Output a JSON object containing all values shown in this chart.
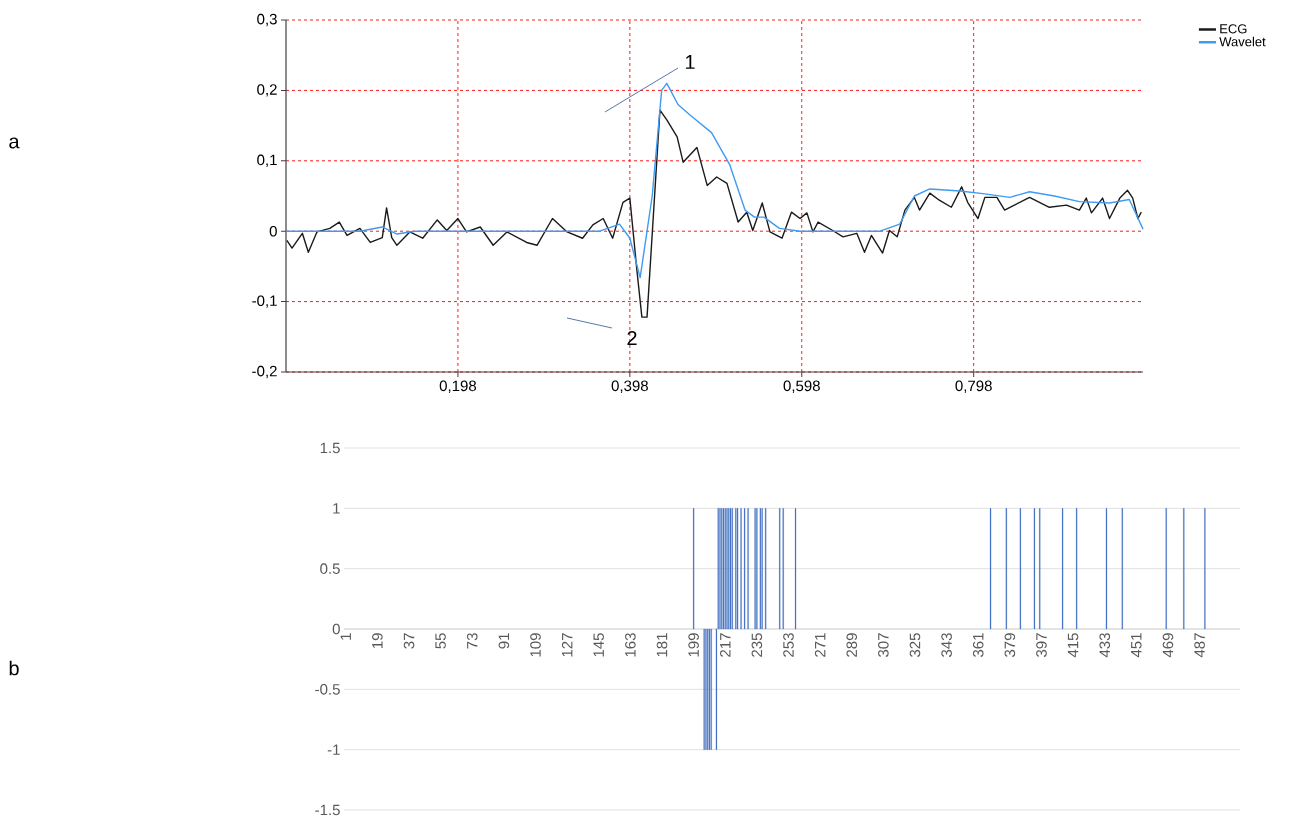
{
  "chart_data": [
    {
      "type": "line",
      "xlim": [
        -0.002,
        0.995
      ],
      "ylim": [
        -0.2,
        0.3
      ],
      "xticks": [
        {
          "value": 0.198,
          "label": "0,198"
        },
        {
          "value": 0.398,
          "label": "0,398"
        },
        {
          "value": 0.598,
          "label": "0,598"
        },
        {
          "value": 0.798,
          "label": "0,798"
        }
      ],
      "yticks": [
        {
          "value": -0.2,
          "label": "-0,2"
        },
        {
          "value": -0.1,
          "label": "-0,1"
        },
        0,
        {
          "value": 0.1,
          "label": "0,1"
        },
        {
          "value": 0.2,
          "label": "0,2"
        },
        {
          "value": 0.3,
          "label": "0,3"
        }
      ],
      "grid": true,
      "legend": "top right",
      "series": [
        {
          "name": "ECG",
          "color": "#1a1a1a",
          "x": [
            -0.001,
            0.005,
            0.017,
            0.024,
            0.034,
            0.049,
            0.06,
            0.069,
            0.084,
            0.096,
            0.11,
            0.115,
            0.121,
            0.127,
            0.142,
            0.157,
            0.174,
            0.185,
            0.198,
            0.208,
            0.224,
            0.239,
            0.255,
            0.278,
            0.29,
            0.308,
            0.325,
            0.343,
            0.355,
            0.367,
            0.378,
            0.39,
            0.398,
            0.406,
            0.412,
            0.418,
            0.433,
            0.441,
            0.453,
            0.46,
            0.476,
            0.488,
            0.499,
            0.511,
            0.524,
            0.534,
            0.541,
            0.552,
            0.561,
            0.575,
            0.586,
            0.596,
            0.604,
            0.611,
            0.617,
            0.634,
            0.646,
            0.662,
            0.671,
            0.679,
            0.692,
            0.7,
            0.709,
            0.718,
            0.729,
            0.735,
            0.747,
            0.758,
            0.772,
            0.784,
            0.791,
            0.803,
            0.811,
            0.825,
            0.834,
            0.863,
            0.886,
            0.906,
            0.921,
            0.929,
            0.935,
            0.948,
            0.956,
            0.968,
            0.977,
            0.983,
            0.989,
            0.993
          ],
          "values": [
            -0.013,
            -0.024,
            -0.003,
            -0.03,
            -0.001,
            0.004,
            0.013,
            -0.006,
            0.004,
            -0.016,
            -0.009,
            0.033,
            -0.009,
            -0.02,
            -0.001,
            -0.01,
            0.016,
            0.001,
            0.018,
            -0.001,
            0.006,
            -0.02,
            -0.001,
            -0.016,
            -0.02,
            0.018,
            -0.001,
            -0.01,
            0.009,
            0.018,
            -0.01,
            0.041,
            0.047,
            -0.053,
            -0.122,
            -0.122,
            0.172,
            0.158,
            0.134,
            0.098,
            0.119,
            0.065,
            0.077,
            0.068,
            0.013,
            0.027,
            0.001,
            0.04,
            -0.001,
            -0.01,
            0.027,
            0.018,
            0.026,
            -0.001,
            0.013,
            0.001,
            -0.008,
            -0.003,
            -0.03,
            -0.006,
            -0.031,
            0.001,
            -0.008,
            0.03,
            0.048,
            0.03,
            0.054,
            0.044,
            0.034,
            0.063,
            0.041,
            0.018,
            0.048,
            0.048,
            0.03,
            0.048,
            0.034,
            0.037,
            0.03,
            0.047,
            0.026,
            0.047,
            0.018,
            0.047,
            0.058,
            0.047,
            0.018,
            0.027
          ]
        },
        {
          "name": "Wavelet",
          "color": "#3f9bf0",
          "x": [
            -0.002,
            0.084,
            0.11,
            0.127,
            0.148,
            0.363,
            0.386,
            0.398,
            0.41,
            0.424,
            0.435,
            0.441,
            0.454,
            0.468,
            0.493,
            0.514,
            0.532,
            0.543,
            0.554,
            0.572,
            0.596,
            0.689,
            0.712,
            0.729,
            0.747,
            0.782,
            0.811,
            0.84,
            0.863,
            0.892,
            0.921,
            0.956,
            0.979,
            0.995
          ],
          "values": [
            0,
            0,
            0.006,
            -0.004,
            0,
            0,
            0.01,
            -0.01,
            -0.066,
            0.05,
            0.2,
            0.21,
            0.18,
            0.165,
            0.14,
            0.095,
            0.03,
            0.02,
            0.02,
            0.004,
            0,
            0,
            0.01,
            0.05,
            0.06,
            0.057,
            0.053,
            0.048,
            0.056,
            0.05,
            0.042,
            0.04,
            0.045,
            0.003
          ]
        }
      ],
      "annotations": [
        "a",
        "1",
        "2"
      ]
    },
    {
      "type": "bar",
      "color": "#4472c4",
      "xlim": [
        0,
        510
      ],
      "ylim": [
        -1.5,
        1.5
      ],
      "xticks": [
        1,
        19,
        37,
        55,
        73,
        91,
        109,
        127,
        145,
        163,
        181,
        199,
        217,
        235,
        253,
        271,
        289,
        307,
        325,
        343,
        361,
        379,
        397,
        415,
        433,
        451,
        469,
        487
      ],
      "yticks": [
        -1.5,
        -1,
        -0.5,
        0,
        0.5,
        1,
        1.5
      ],
      "grid": "y",
      "x": [
        199,
        205,
        206,
        207,
        208,
        209,
        212,
        213,
        214,
        215,
        216,
        217,
        218,
        219,
        220,
        221,
        223,
        224,
        226,
        228,
        230,
        234,
        235,
        237,
        238,
        240,
        248,
        250,
        257,
        368,
        377,
        385,
        393,
        396,
        409,
        417,
        434,
        443,
        468,
        478,
        490
      ],
      "values": [
        1,
        -1,
        -1,
        -1,
        -1,
        -1,
        -1,
        1,
        1,
        1,
        1,
        1,
        1,
        1,
        1,
        1,
        1,
        1,
        1,
        1,
        1,
        1,
        1,
        1,
        1,
        1,
        1,
        1,
        1,
        1,
        1,
        1,
        1,
        1,
        1,
        1,
        1,
        1,
        1,
        1,
        1
      ],
      "annotations": [
        "b"
      ]
    }
  ]
}
